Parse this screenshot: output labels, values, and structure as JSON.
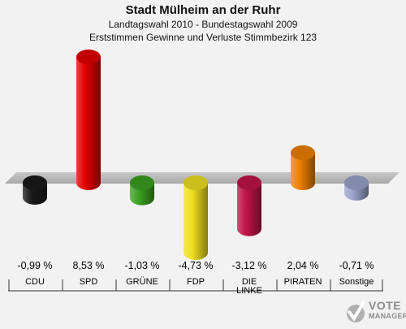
{
  "header": {
    "title": "Stadt Mülheim an der Ruhr",
    "subtitle1": "Landtagswahl 2010 - Bundestagswahl 2009",
    "subtitle2": "Erststimmen Gewinne und Verluste Stimmbezirk 123"
  },
  "chart_data": {
    "type": "bar",
    "title": "Stadt Mülheim an der Ruhr",
    "subtitle": "Landtagswahl 2010 - Bundestagswahl 2009 / Erststimmen Gewinne und Verluste Stimmbezirk 123",
    "categories": [
      "CDU",
      "SPD",
      "GRÜNE",
      "FDP",
      "DIE LINKE",
      "PIRATEN",
      "Sonstige"
    ],
    "values": [
      -0.99,
      8.53,
      -1.03,
      -4.73,
      -3.12,
      2.04,
      -0.71
    ],
    "value_labels": [
      "-0,99 %",
      "8,53 %",
      "-1,03 %",
      "-4,73 %",
      "-3,12 %",
      "2,04 %",
      "-0,71 %"
    ],
    "colors": [
      "#1a1a1a",
      "#e30000",
      "#3ca020",
      "#f0e020",
      "#c0144a",
      "#f08000",
      "#9aa4cc"
    ],
    "unit": "%",
    "ylim": [
      -5,
      9
    ]
  },
  "logo": {
    "line1": "VOTE",
    "line2": "MANAGER"
  }
}
